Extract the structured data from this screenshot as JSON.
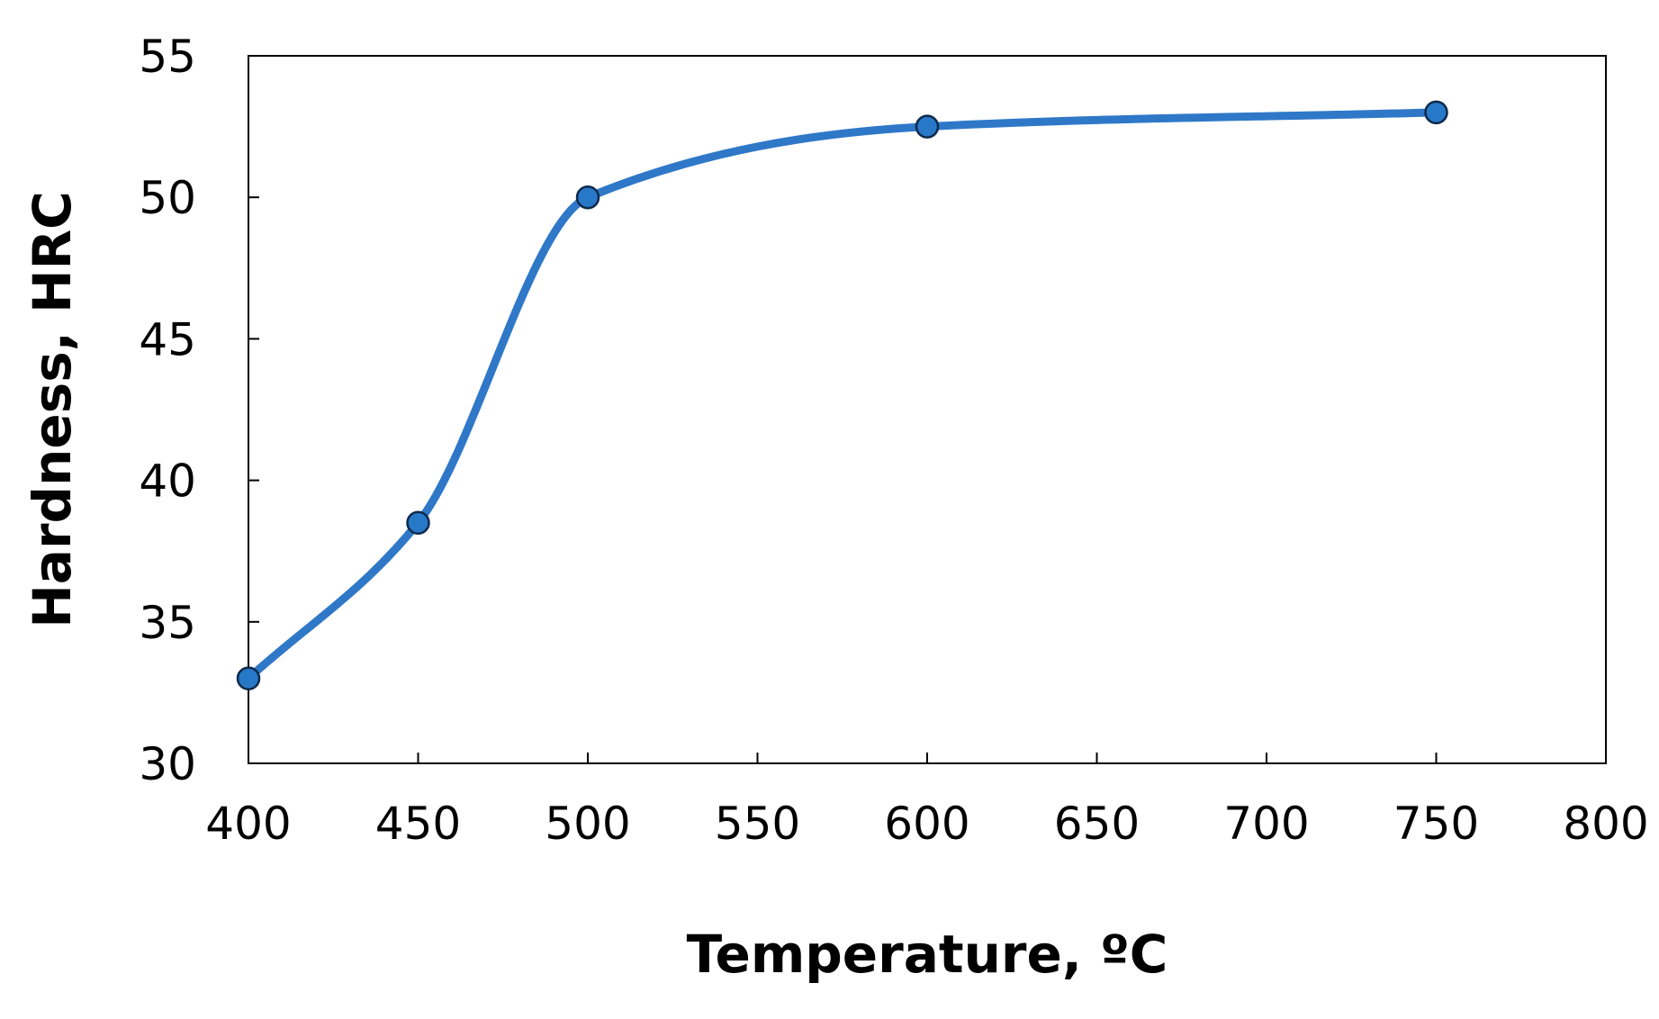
{
  "chart_data": {
    "type": "line",
    "title": "",
    "xlabel": "Temperature, ºC",
    "ylabel": "Hardness, HRC",
    "xlim": [
      400,
      800
    ],
    "ylim": [
      30,
      55
    ],
    "xticks": [
      "400",
      "450",
      "500",
      "550",
      "600",
      "650",
      "700",
      "750",
      "800"
    ],
    "yticks": [
      "30",
      "35",
      "40",
      "45",
      "50",
      "55"
    ],
    "grid": false,
    "legend": "none",
    "smooth": true,
    "series": [
      {
        "x": [
          400,
          450,
          500,
          600,
          750
        ],
        "y": [
          33,
          38.5,
          50,
          52.5,
          53
        ],
        "color": "#2f78c8",
        "marker_color": "#2878c8",
        "marker_edge": "#0d2a4a"
      }
    ]
  }
}
